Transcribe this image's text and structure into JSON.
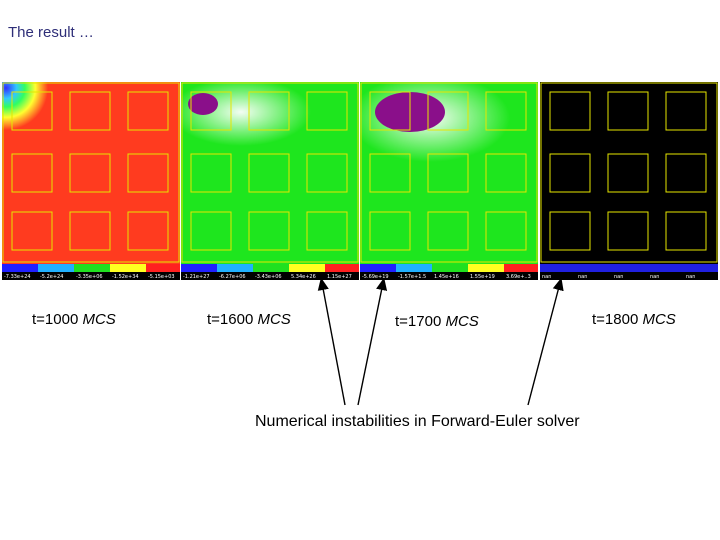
{
  "title": "The result …",
  "panels": [
    {
      "label_t": "t=1000",
      "label_unit": "MCS",
      "bg": "#ff3b1f",
      "ticks": [
        "-7.33e+24",
        "-5.2e+24",
        "-3.35e+06",
        "-1.52e+34",
        "-5.15e+03"
      ]
    },
    {
      "label_t": "t=1600",
      "label_unit": "MCS",
      "bg": "#1ee61e",
      "ticks": [
        "-1.21e+27",
        "-6.27e+06",
        "-3.43e+06",
        "5.34e+26",
        "1.15e+27"
      ]
    },
    {
      "label_t": "t=1700",
      "label_unit": "MCS",
      "bg": "#1ee61e",
      "ticks": [
        "-5.69e+19",
        "-1.57e+1.5",
        "1.45e+16",
        "1.55e+19",
        "3.69e+..3"
      ]
    },
    {
      "label_t": "t=1800",
      "label_unit": "MCS",
      "bg": "#000000",
      "ticks": [
        "nan",
        "nan",
        "nan",
        "nan",
        "nan"
      ]
    }
  ],
  "annotation": "Numerical instabilities in Forward-Euler solver",
  "colors": {
    "title": "#2e2e78",
    "grid_lines": "#e6e600",
    "blob": "#8a0f8a"
  }
}
